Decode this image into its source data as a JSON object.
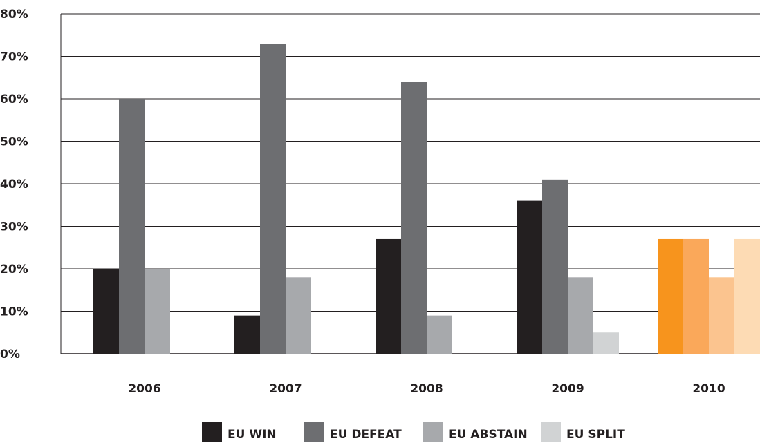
{
  "chart_data": {
    "type": "bar",
    "title": "",
    "xlabel": "",
    "ylabel": "",
    "ylim": [
      0,
      80
    ],
    "y_ticks": [
      "0%",
      "10%",
      "20%",
      "30%",
      "40%",
      "50%",
      "60%",
      "70%",
      "80%"
    ],
    "y_tick_values": [
      0,
      10,
      20,
      30,
      40,
      50,
      60,
      70,
      80
    ],
    "grid": true,
    "legend_position": "bottom",
    "categories": [
      "2006",
      "2007",
      "2008",
      "2009",
      "2010"
    ],
    "series": [
      {
        "name": "EU WIN",
        "color": "#231f20",
        "values": [
          20,
          9,
          27,
          36,
          27
        ]
      },
      {
        "name": "EU DEFEAT",
        "color": "#6d6e71",
        "values": [
          60,
          73,
          64,
          41,
          27
        ]
      },
      {
        "name": "EU ABSTAIN",
        "color": "#a7a9ac",
        "values": [
          20,
          18,
          9,
          18,
          18
        ]
      },
      {
        "name": "EU SPLIT",
        "color": "#d1d3d4",
        "values": [
          0,
          0,
          0,
          5,
          27
        ]
      }
    ],
    "highlight": {
      "category": "2010",
      "colors": [
        "#f7941d",
        "#faa85a",
        "#fbc48f",
        "#fddbb4"
      ]
    }
  }
}
